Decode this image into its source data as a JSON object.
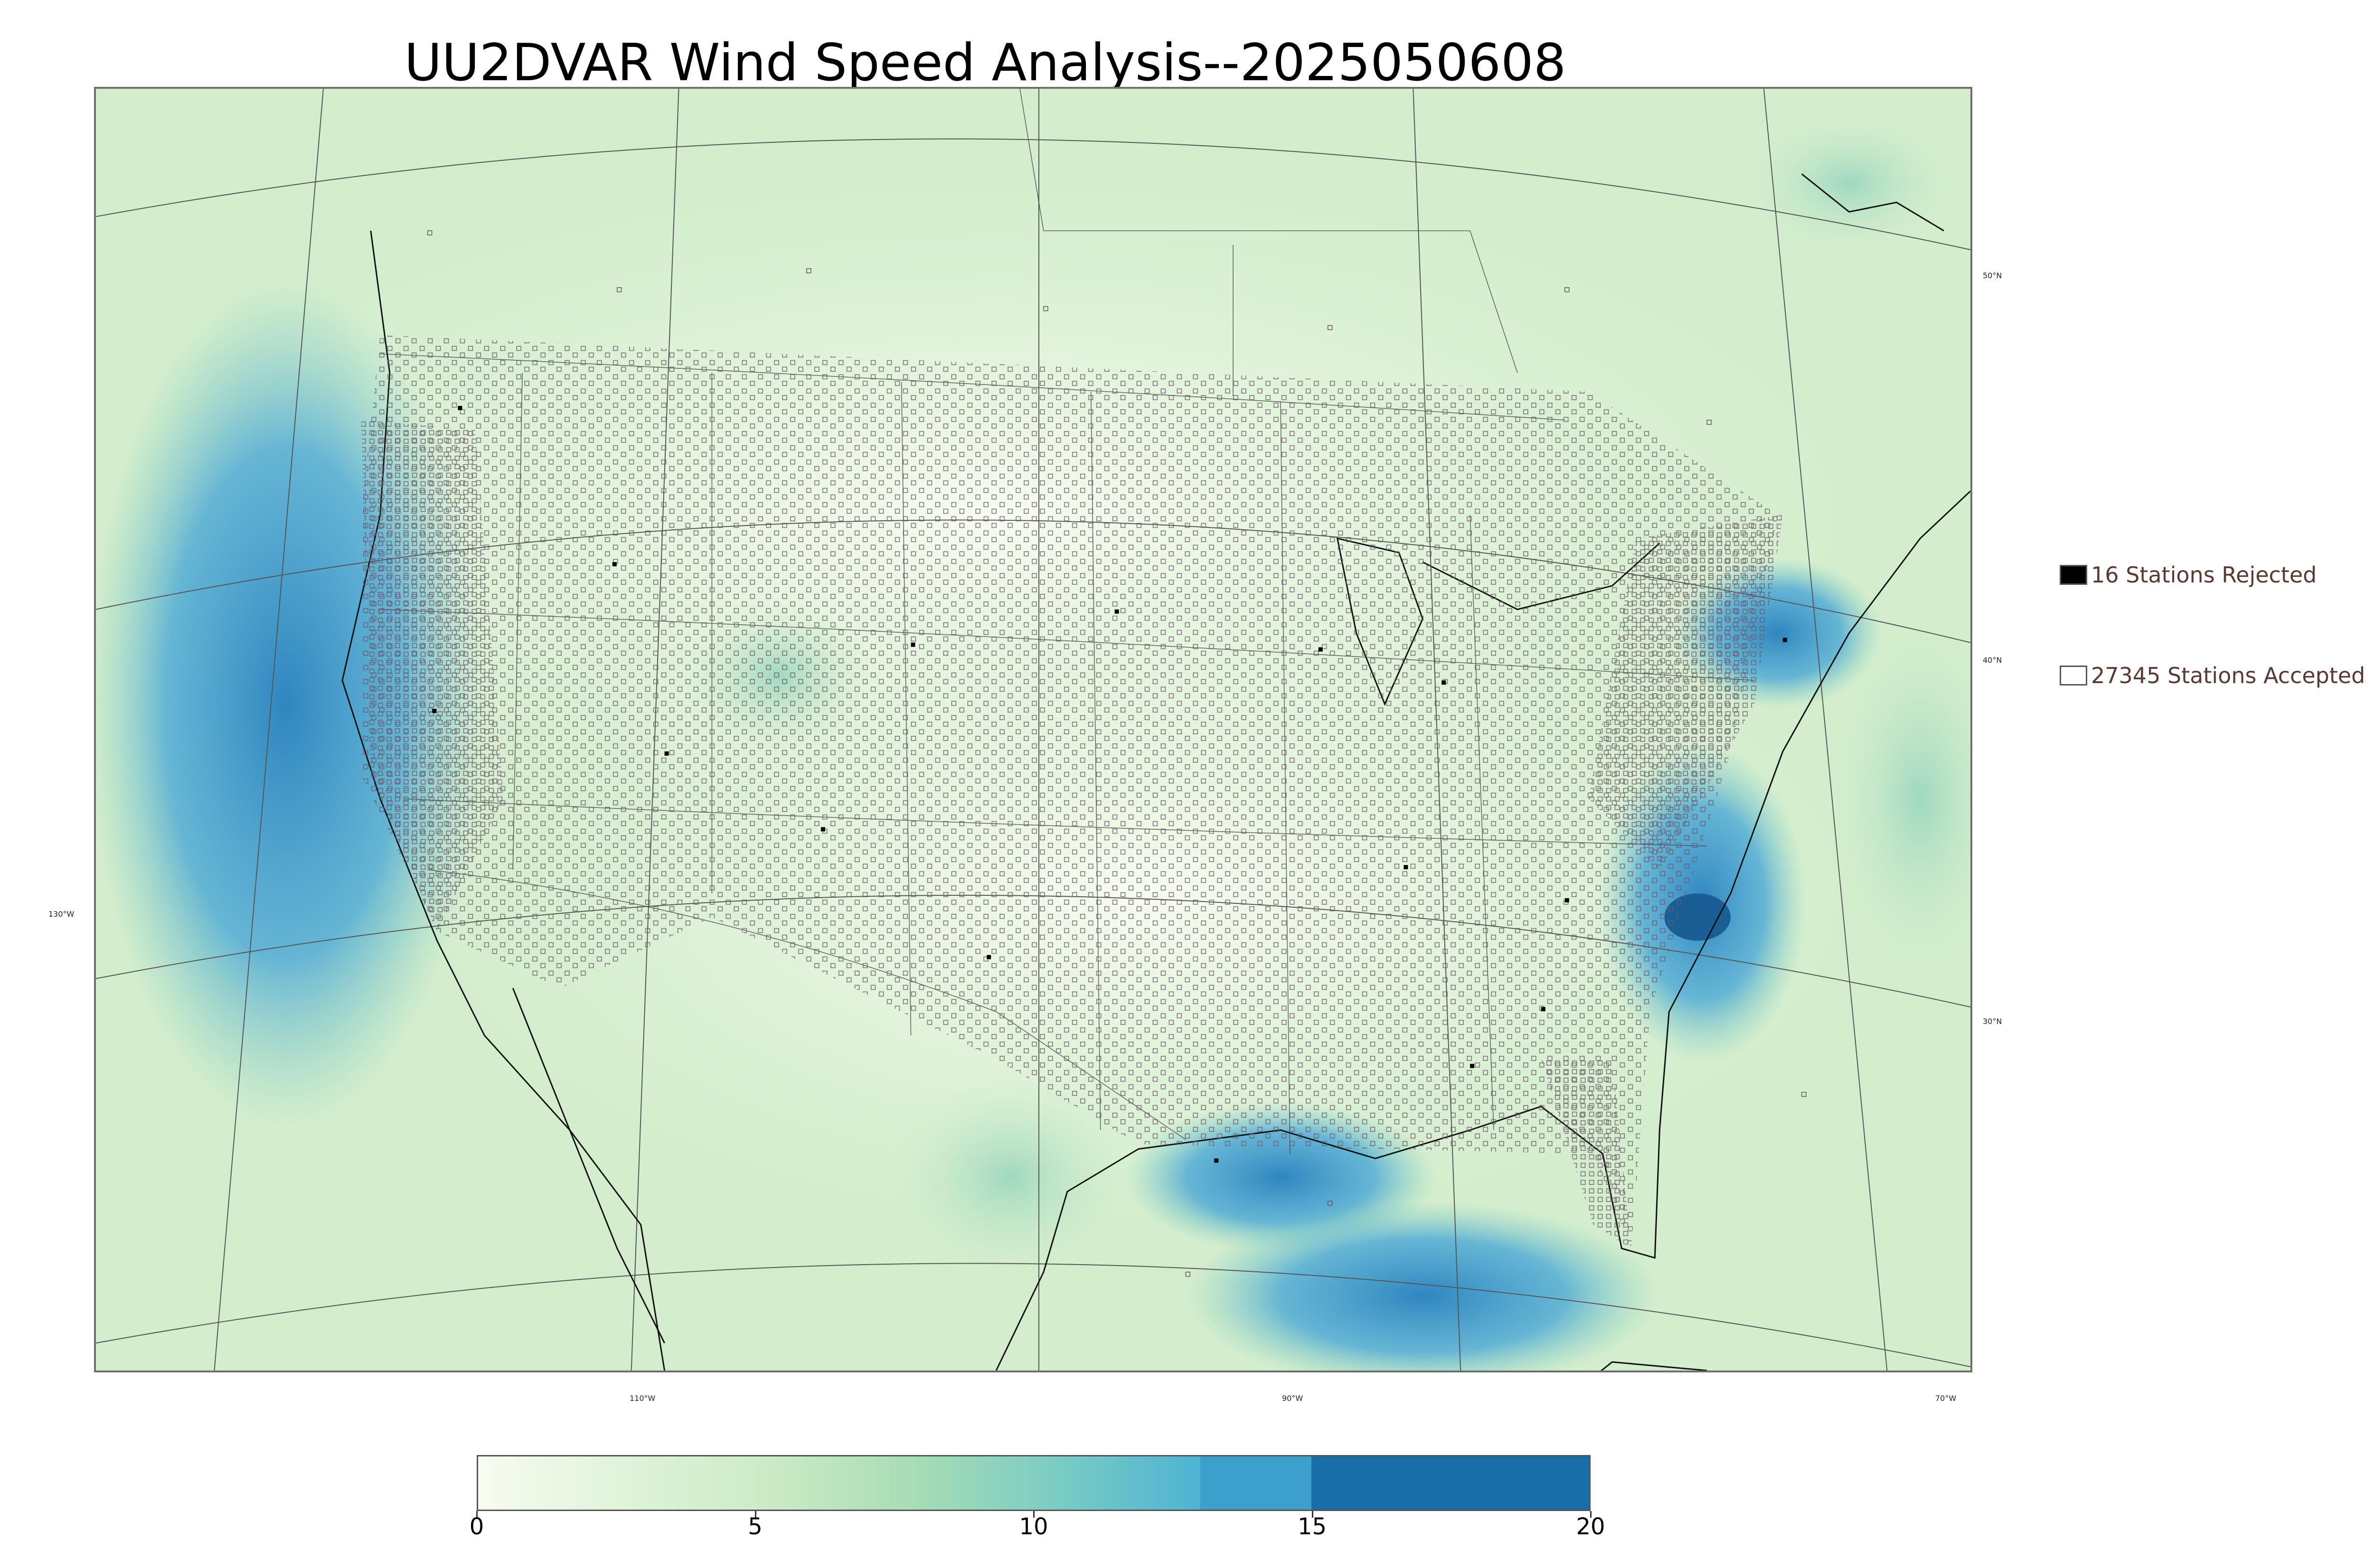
{
  "title": "UU2DVAR Wind Speed Analysis--2025050608",
  "graticule": {
    "lat_labels": [
      "50°N",
      "40°N",
      "30°N"
    ],
    "lon_labels": [
      "130°W",
      "110°W",
      "90°W",
      "70°W"
    ]
  },
  "legend": {
    "rejected": {
      "label": "16 Stations Rejected",
      "color": "#000000"
    },
    "accepted": {
      "label": "27345 Stations Accepted",
      "color": "#ffffff"
    }
  },
  "colorbar": {
    "min": 0,
    "max": 20,
    "ticks": [
      "0",
      "5",
      "10",
      "15",
      "20"
    ],
    "segments": [
      {
        "from": 0,
        "to": 13,
        "gradient": [
          "#f7fcf0",
          "#e0f3db",
          "#ccebc5",
          "#a8ddb5",
          "#7bccc4",
          "#4eb3d3"
        ]
      },
      {
        "from": 13,
        "to": 15,
        "color": "#3c9fcc"
      },
      {
        "from": 15,
        "to": 20,
        "color": "#1a6ea8"
      }
    ]
  },
  "colors": {
    "land_base": "#e6f5e0",
    "ocean_high_wind": "#4aa7d6",
    "station_outline": "#6a5a6a"
  }
}
